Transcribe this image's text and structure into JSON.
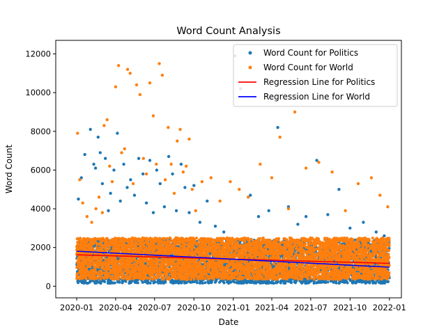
{
  "chart_data": {
    "type": "scatter",
    "title": "Word Count Analysis",
    "xlabel": "Date",
    "ylabel": "Word Count",
    "xlim": [
      "2019-11-13",
      "2022-01-29"
    ],
    "ylim": [
      -600,
      12700
    ],
    "x_ticks": [
      "2020-01",
      "2020-04",
      "2020-07",
      "2020-10",
      "2021-01",
      "2021-04",
      "2021-07",
      "2021-10",
      "2022-01"
    ],
    "y_ticks": [
      0,
      2000,
      4000,
      6000,
      8000,
      10000,
      12000
    ],
    "legend_position": "top-right",
    "series": [
      {
        "name": "Word Count for Politics",
        "kind": "points",
        "color": "#1f77b4",
        "x": [
          "2020-01-05",
          "2020-01-12",
          "2020-01-20",
          "2020-02-02",
          "2020-02-10",
          "2020-02-14",
          "2020-02-20",
          "2020-02-25",
          "2020-03-01",
          "2020-03-08",
          "2020-03-15",
          "2020-03-20",
          "2020-03-28",
          "2020-04-05",
          "2020-04-12",
          "2020-04-20",
          "2020-04-28",
          "2020-05-06",
          "2020-05-15",
          "2020-05-25",
          "2020-06-04",
          "2020-06-12",
          "2020-06-20",
          "2020-06-28",
          "2020-07-06",
          "2020-07-14",
          "2020-07-24",
          "2020-08-03",
          "2020-08-12",
          "2020-08-21",
          "2020-09-01",
          "2020-09-10",
          "2020-09-20",
          "2020-10-01",
          "2020-10-15",
          "2020-11-01",
          "2020-11-20",
          "2020-12-10",
          "2021-01-05",
          "2021-01-18",
          "2021-02-10",
          "2021-03-01",
          "2021-03-25",
          "2021-04-15",
          "2021-05-10",
          "2021-06-01",
          "2021-06-20",
          "2021-07-15",
          "2021-08-10",
          "2021-09-05",
          "2021-10-01",
          "2021-11-01",
          "2021-12-01",
          "2021-12-20"
        ],
        "y": [
          4500,
          5600,
          6800,
          8100,
          6300,
          6100,
          7700,
          6900,
          5300,
          6600,
          3900,
          4800,
          6000,
          7900,
          4400,
          6300,
          5100,
          5500,
          4700,
          6600,
          5800,
          4300,
          6500,
          3800,
          6000,
          5300,
          4100,
          6700,
          5800,
          3900,
          6300,
          5100,
          3800,
          5200,
          3300,
          4400,
          3100,
          2800,
          11900,
          10200,
          4700,
          3600,
          3900,
          8200,
          4100,
          3200,
          3600,
          6500,
          3700,
          5000,
          3000,
          3300,
          2800,
          2600
        ]
      },
      {
        "name": "Word Count for World",
        "kind": "points",
        "color": "#ff7f0e",
        "x": [
          "2020-01-03",
          "2020-01-08",
          "2020-01-15",
          "2020-01-25",
          "2020-02-05",
          "2020-02-15",
          "2020-02-22",
          "2020-03-01",
          "2020-03-05",
          "2020-03-12",
          "2020-03-18",
          "2020-03-24",
          "2020-04-01",
          "2020-04-08",
          "2020-04-15",
          "2020-04-22",
          "2020-04-29",
          "2020-05-05",
          "2020-05-12",
          "2020-05-20",
          "2020-05-28",
          "2020-06-05",
          "2020-06-12",
          "2020-06-20",
          "2020-06-28",
          "2020-07-05",
          "2020-07-12",
          "2020-07-19",
          "2020-07-26",
          "2020-08-02",
          "2020-08-09",
          "2020-08-16",
          "2020-08-23",
          "2020-08-30",
          "2020-09-06",
          "2020-09-13",
          "2020-09-20",
          "2020-09-27",
          "2020-10-05",
          "2020-10-20",
          "2020-11-10",
          "2020-12-01",
          "2020-12-25",
          "2021-01-15",
          "2021-02-05",
          "2021-03-05",
          "2021-04-01",
          "2021-04-20",
          "2021-05-10",
          "2021-05-25",
          "2021-06-20",
          "2021-07-20",
          "2021-08-20",
          "2021-09-20",
          "2021-10-20",
          "2021-11-20",
          "2021-12-10",
          "2021-12-28"
        ],
        "y": [
          7900,
          5500,
          4300,
          3600,
          3300,
          4000,
          4600,
          3800,
          8300,
          8600,
          6200,
          5400,
          10300,
          11400,
          6900,
          7100,
          11200,
          11000,
          5300,
          10400,
          9900,
          6600,
          5800,
          10500,
          8800,
          6300,
          11500,
          10900,
          5500,
          8200,
          6300,
          4800,
          7500,
          8100,
          5900,
          6200,
          7600,
          5000,
          3900,
          5400,
          5600,
          4400,
          5400,
          5000,
          4600,
          6300,
          5600,
          7700,
          4000,
          9000,
          6100,
          6400,
          5900,
          3900,
          5300,
          5600,
          4700,
          4100
        ]
      },
      {
        "name": "Regression Line for Politics",
        "kind": "line",
        "color": "#ff0000",
        "x": [
          "2020-01-01",
          "2022-01-01"
        ],
        "y": [
          1620,
          1180
        ]
      },
      {
        "name": "Regression Line for World",
        "kind": "line",
        "color": "#0000ff",
        "x": [
          "2020-01-01",
          "2022-01-01"
        ],
        "y": [
          1810,
          980
        ]
      }
    ],
    "band": {
      "x_from": "2020-01-01",
      "x_to": "2022-01-01",
      "politics_range": [
        150,
        2400
      ],
      "world_range": [
        350,
        2500
      ]
    }
  }
}
